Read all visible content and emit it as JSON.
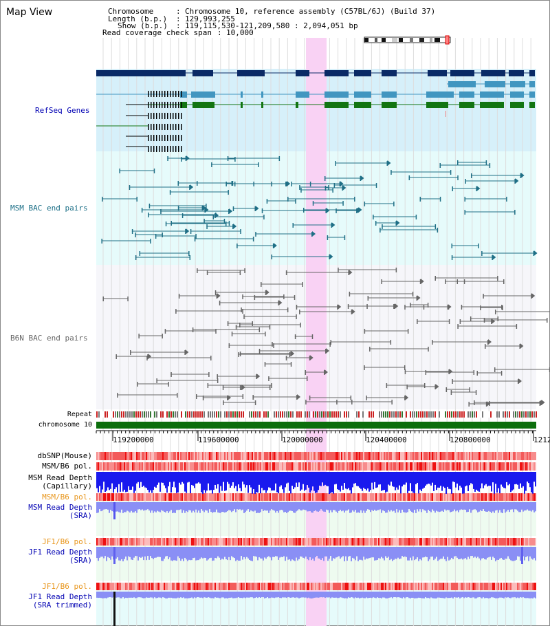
{
  "app": {
    "title": "Map View"
  },
  "info": {
    "chromosome_key": "Chromosome",
    "chromosome_value": "Chromosome 10, reference assembly (C57BL/6J) (Build 37)",
    "length_key": "Length (b.p.)",
    "length_value": "129,993,255",
    "show_key": "Show (b.p.)",
    "show_value": "119,115,530-121,209,580 : 2,094,051 bp",
    "coverage_key": "Read coverage check span",
    "coverage_value": "10,000"
  },
  "tracks": {
    "refseq": "RefSeq Genes",
    "msm_bac": "MSM BAC end pairs",
    "b6n_bac": "B6N BAC end pairs",
    "repeat": "Repeat",
    "chromosome": "chromosome 10"
  },
  "axis": {
    "ticks": [
      "119200000",
      "119600000",
      "120000000",
      "120400000",
      "120800000",
      "1212"
    ]
  },
  "lower_tracks": {
    "dbsnp": "dbSNP(Mouse)",
    "msm_b6_pol_1": "MSM/B6 pol.",
    "msm_depth_cap_1": "MSM Read Depth",
    "msm_depth_cap_2": "(Capillary)",
    "msm_b6_pol_2": "MSM/B6 pol.",
    "msm_depth_sra_1": "MSM Read Depth",
    "msm_depth_sra_2": "(SRA)",
    "jf1_b6_pol_1": "JF1/B6 pol.",
    "jf1_depth_sra_1": "JF1 Read Depth",
    "jf1_depth_sra_2": "(SRA)",
    "jf1_b6_pol_2": "JF1/B6 pol.",
    "jf1_depth_trim_1": "JF1 Read Depth",
    "jf1_depth_trim_2": "(SRA trimmed)"
  },
  "colors": {
    "refseq_bg": "#d6f0fa",
    "msm_bg": "#e6fbfb",
    "b6n_bg": "#f6f6fa",
    "highlight": "#f9d2f4",
    "gene_dark": "#0a2a66",
    "gene_teal": "#4196c0",
    "gene_green": "#127512",
    "msm_pair": "#1f6f86",
    "b6n_pair": "#666666",
    "snp_red": "#ee3a3a",
    "depth_blue": "#1a1aee",
    "depth_light": "#8a8ff5",
    "chromosome_green": "#0c6e0c",
    "label_blue": "#0000b3",
    "label_teal": "#1a6e86",
    "label_orange": "#e8951a"
  }
}
